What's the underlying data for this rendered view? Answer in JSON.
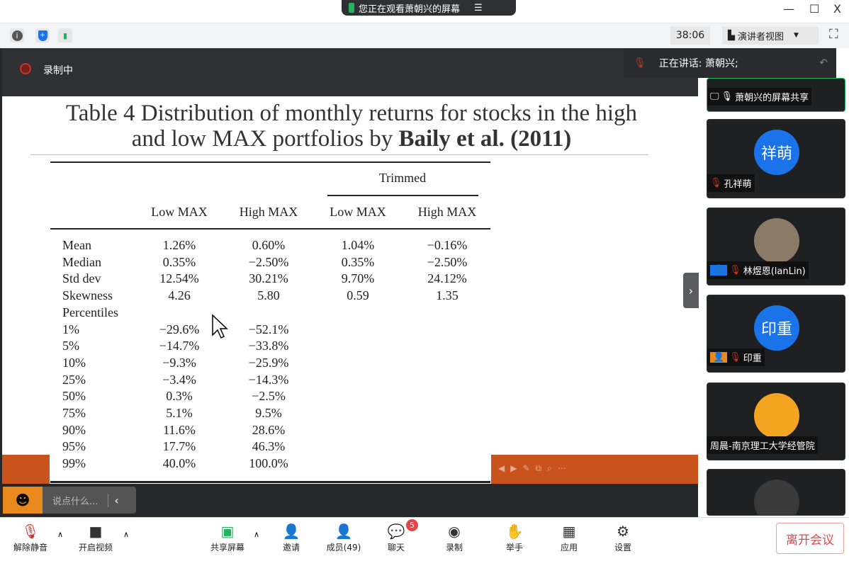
{
  "window": {
    "banner": "您正在观看萧朝兴的屏幕",
    "minimize": "—",
    "maximize": "☐",
    "close": "X"
  },
  "toolbar": {
    "timer": "38:06",
    "view_mode": "演讲者视图"
  },
  "meeting": {
    "recording": "录制中",
    "speaking_label": "正在讲话: 萧朝兴;"
  },
  "slide": {
    "title_line1": "Table 4 Distribution of monthly returns for stocks in the high",
    "title_line2_plain": "and low MAX portfolios by ",
    "title_line2_bold": "Baily et al. (2011)",
    "trimmed_header": "Trimmed",
    "columns": [
      "Low MAX",
      "High MAX",
      "Low MAX",
      "High MAX"
    ],
    "rows": [
      {
        "label": "Mean",
        "values": [
          "1.26%",
          "0.60%",
          "1.04%",
          "−0.16%"
        ]
      },
      {
        "label": "Median",
        "values": [
          "0.35%",
          "−2.50%",
          "0.35%",
          "−2.50%"
        ]
      },
      {
        "label": "Std dev",
        "values": [
          "12.54%",
          "30.21%",
          "9.70%",
          "24.12%"
        ]
      },
      {
        "label": "Skewness",
        "values": [
          "4.26",
          "5.80",
          "0.59",
          "1.35"
        ]
      },
      {
        "label": "Percentiles",
        "values": [
          "",
          "",
          "",
          ""
        ]
      },
      {
        "label": "1%",
        "values": [
          "−29.6%",
          "−52.1%",
          "",
          ""
        ]
      },
      {
        "label": "5%",
        "values": [
          "−14.7%",
          "−33.8%",
          "",
          ""
        ]
      },
      {
        "label": "10%",
        "values": [
          "−9.3%",
          "−25.9%",
          "",
          ""
        ]
      },
      {
        "label": "25%",
        "values": [
          "−3.4%",
          "−14.3%",
          "",
          ""
        ]
      },
      {
        "label": "50%",
        "values": [
          "0.3%",
          "−2.5%",
          "",
          ""
        ]
      },
      {
        "label": "75%",
        "values": [
          "5.1%",
          "9.5%",
          "",
          ""
        ]
      },
      {
        "label": "90%",
        "values": [
          "11.6%",
          "28.6%",
          "",
          ""
        ]
      },
      {
        "label": "95%",
        "values": [
          "17.7%",
          "46.3%",
          "",
          ""
        ]
      },
      {
        "label": "99%",
        "values": [
          "40.0%",
          "100.0%",
          "",
          ""
        ]
      }
    ]
  },
  "chat": {
    "placeholder": "说点什么..."
  },
  "participants": [
    {
      "name": "萧朝兴的屏幕共享",
      "avatar": ""
    },
    {
      "name": "孔祥萌",
      "avatar": "祥萌"
    },
    {
      "name": "林煜恩(lanLin)",
      "avatar": ""
    },
    {
      "name": "印重",
      "avatar": "印重"
    },
    {
      "name": "周晨-南京理工大学经管院",
      "avatar": ""
    }
  ],
  "bottom": {
    "mute": "解除静音",
    "video": "开启视频",
    "share": "共享屏幕",
    "invite": "邀请",
    "members": "成员(49)",
    "chat": "聊天",
    "chat_badge": "5",
    "record": "录制",
    "raise_hand": "举手",
    "apps": "应用",
    "settings": "设置",
    "leave": "离开会议"
  },
  "colors": {
    "accent_green": "#22b35e",
    "avatar_blue": "#1a73e8",
    "leave_red": "#e54545",
    "slide_orange": "#c8531c"
  }
}
